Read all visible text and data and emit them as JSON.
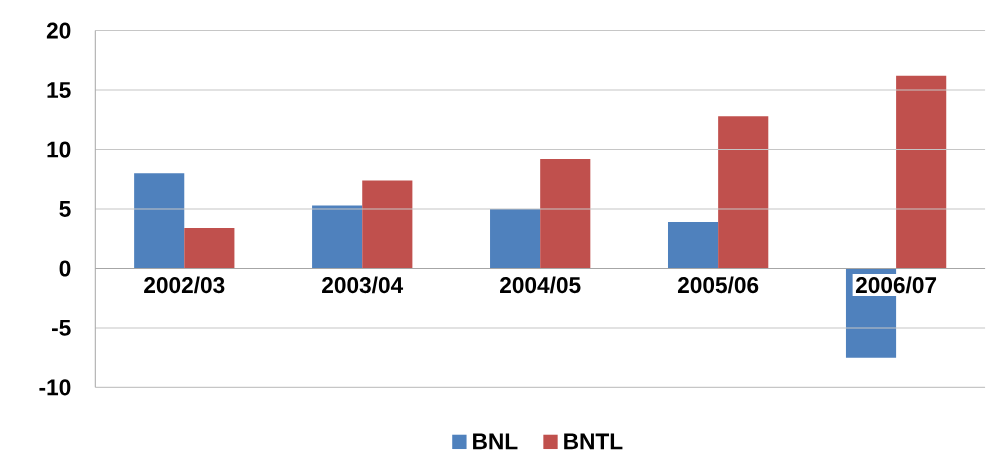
{
  "chart_data": {
    "type": "bar",
    "categories": [
      "2002/03",
      "2003/04",
      "2004/05",
      "2005/06",
      "2006/07"
    ],
    "series": [
      {
        "name": "BNL",
        "color": "#4f81bd",
        "values": [
          8.0,
          5.3,
          5.0,
          3.9,
          -7.5
        ]
      },
      {
        "name": "BNTL",
        "color": "#c0504d",
        "values": [
          3.4,
          7.4,
          9.2,
          12.8,
          16.2
        ]
      }
    ],
    "ylim": [
      -10,
      20
    ],
    "yticks": [
      -10,
      -5,
      0,
      5,
      10,
      15,
      20
    ],
    "grid": "y",
    "legend": "bottom"
  }
}
